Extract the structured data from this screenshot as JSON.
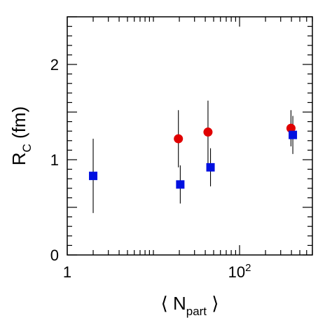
{
  "chart_data": {
    "type": "scatter",
    "title": "",
    "ylabel": "R_C (fm)",
    "xlabel": "⟨ N_part ⟩",
    "x_scale": "log",
    "xlim": [
      1,
      700
    ],
    "ylim": [
      0,
      2.5
    ],
    "y_ticks": [
      0,
      1,
      2
    ],
    "y_tick_labels": [
      "0",
      "1",
      "2"
    ],
    "x_ticks": [
      1,
      100
    ],
    "x_tick_labels": [
      "1",
      "10^2"
    ],
    "grid": false,
    "series": [
      {
        "marker": "circle",
        "color": "#e00000",
        "points": [
          {
            "x": 19.5,
            "y": 1.22,
            "err": 0.3
          },
          {
            "x": 43,
            "y": 1.29,
            "err": 0.33
          },
          {
            "x": 395,
            "y": 1.33,
            "err": 0.19
          }
        ]
      },
      {
        "marker": "square",
        "color": "#0010e0",
        "points": [
          {
            "x": 2.0,
            "y": 0.83,
            "err": 0.39
          },
          {
            "x": 20.5,
            "y": 0.74,
            "err": 0.2
          },
          {
            "x": 46,
            "y": 0.92,
            "err": 0.2
          },
          {
            "x": 415,
            "y": 1.26,
            "err": 0.2
          }
        ]
      }
    ]
  }
}
